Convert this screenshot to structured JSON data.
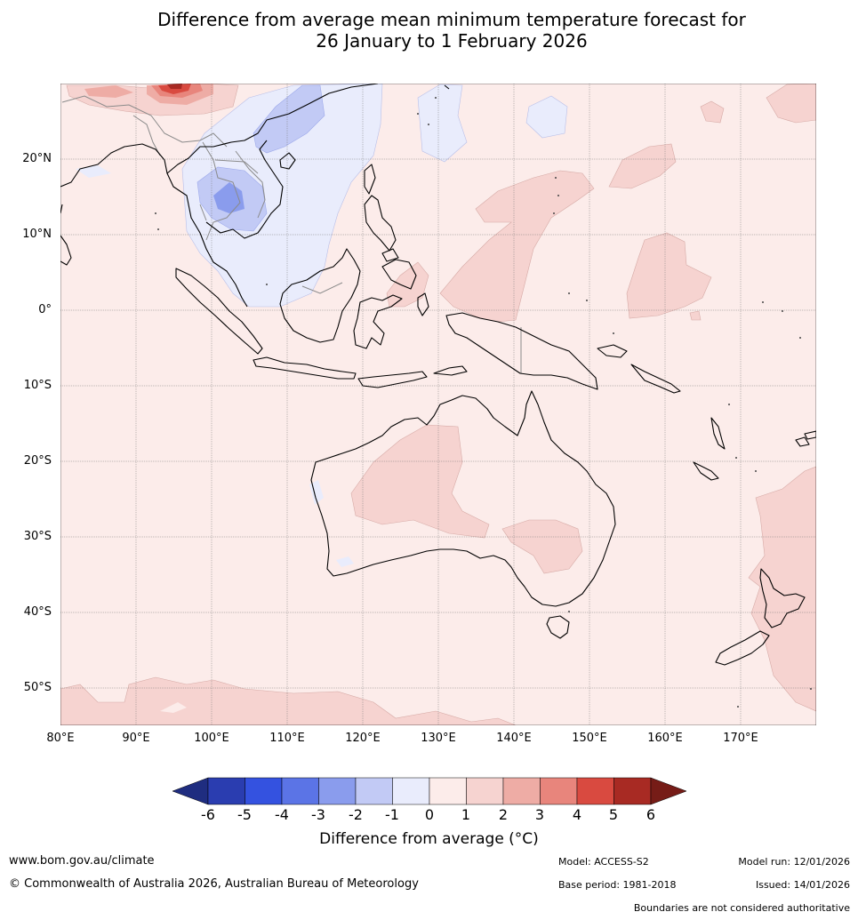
{
  "title": {
    "line1": "Difference from average mean minimum temperature forecast for",
    "line2": "26 January to 1 February 2026"
  },
  "axes": {
    "lat_labels": [
      "20°N",
      "10°N",
      "0°",
      "10°S",
      "20°S",
      "30°S",
      "40°S",
      "50°S"
    ],
    "lon_labels": [
      "80°E",
      "90°E",
      "100°E",
      "110°E",
      "120°E",
      "130°E",
      "140°E",
      "150°E",
      "160°E",
      "170°E"
    ]
  },
  "colorbar": {
    "ticks": [
      "-6",
      "-5",
      "-4",
      "-3",
      "-2",
      "-1",
      "0",
      "1",
      "2",
      "3",
      "4",
      "5",
      "6"
    ],
    "colors": [
      "#1f2d80",
      "#2a3db0",
      "#3452e0",
      "#5b74e6",
      "#8a9ced",
      "#c2caf5",
      "#e9ecfc",
      "#fcecea",
      "#f6d3d0",
      "#eeaca5",
      "#e8857c",
      "#d94a40",
      "#a82a23",
      "#761c17"
    ],
    "label": "Difference from average (°C)"
  },
  "footer": {
    "url": "www.bom.gov.au/climate",
    "copyright": "© Commonwealth of Australia 2026, Australian Bureau of Meteorology",
    "model": "Model: ACCESS-S2",
    "base_period": "Base period: 1981-2018",
    "model_run": "Model run: 12/01/2026",
    "issued": "Issued: 14/01/2026",
    "disclaimer": "Boundaries are not considered authoritative"
  }
}
